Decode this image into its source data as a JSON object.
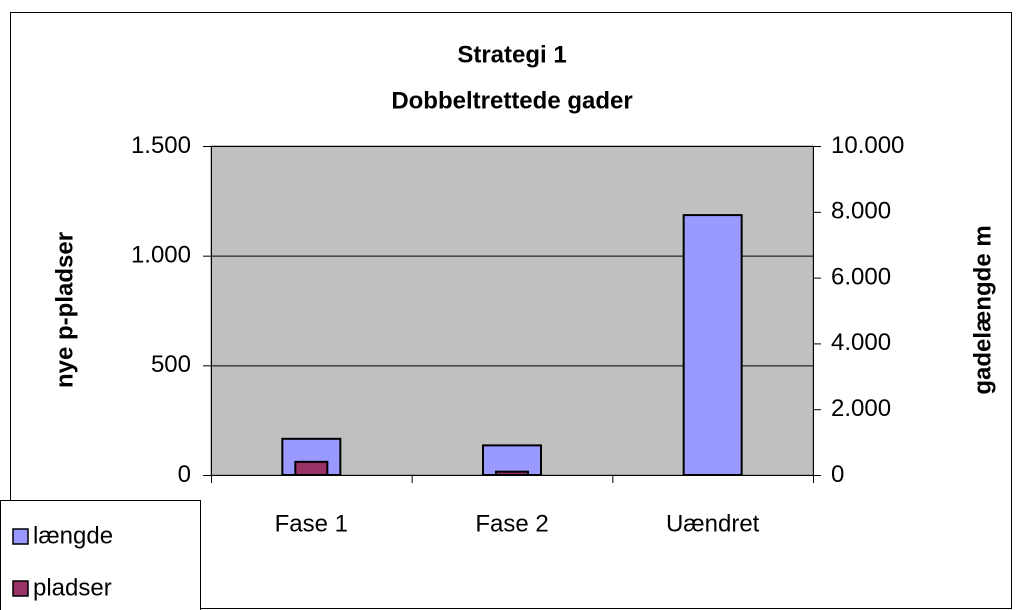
{
  "chart_data": {
    "type": "bar",
    "title": "Strategi 1",
    "subtitle": "Dobbeltrettede gader",
    "ylabel": "nye p-pladser",
    "y2label": "gadelængde m",
    "categories": [
      "Fase 1",
      "Fase 2",
      "Uændret"
    ],
    "series": [
      {
        "name": "længde",
        "color": "#9999ff",
        "axis": "y2",
        "values": [
          1100,
          900,
          7900
        ]
      },
      {
        "name": "pladser",
        "color": "#993366",
        "values": [
          60,
          15,
          0
        ]
      }
    ],
    "ylim": [
      0,
      1500
    ],
    "yticks": [
      0,
      500,
      {
        "value": 1000,
        "label": "1.000"
      },
      {
        "value": 1500,
        "label": "1.500"
      }
    ],
    "y2lim": [
      0,
      10000
    ],
    "y2ticks": [
      0,
      {
        "value": 2000,
        "label": "2.000"
      },
      {
        "value": 4000,
        "label": "4.000"
      },
      {
        "value": 6000,
        "label": "6.000"
      },
      {
        "value": 8000,
        "label": "8.000"
      },
      {
        "value": 10000,
        "label": "10.000"
      }
    ],
    "grid": true,
    "legend": "bottom-left",
    "background": "#c0c0c0"
  }
}
